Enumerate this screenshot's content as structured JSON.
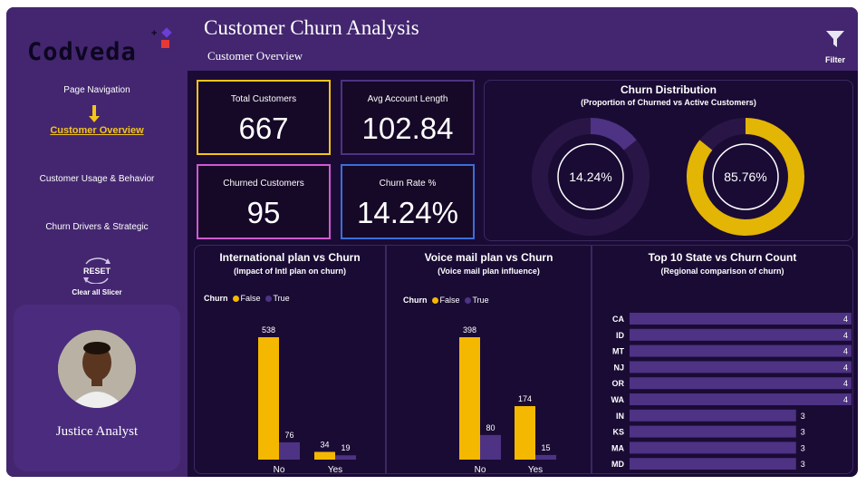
{
  "brand": {
    "name": "Codveda"
  },
  "header": {
    "title": "Customer Churn Analysis",
    "subtitle": "Customer Overview",
    "filter_label": "Filter"
  },
  "nav": {
    "title": "Page Navigation",
    "items": [
      {
        "label": "Customer Overview",
        "active": true
      },
      {
        "label": "Customer Usage & Behavior",
        "active": false
      },
      {
        "label": "Churn Drivers & Strategic",
        "active": false
      }
    ],
    "reset_button": "RESET",
    "reset_label": "Clear all Slicer"
  },
  "profile": {
    "name": "Justice Analyst"
  },
  "kpis": {
    "total_customers": {
      "label": "Total Customers",
      "value": "667"
    },
    "avg_account_length": {
      "label": "Avg Account Length",
      "value": "102.84"
    },
    "churned_customers": {
      "label": "Churned Customers",
      "value": "95"
    },
    "churn_rate": {
      "label": "Churn Rate %",
      "value": "14.24%"
    }
  },
  "colors": {
    "gold": "#f5b800",
    "purple": "#4e3283",
    "accent_yellow": "#f5c518"
  },
  "chart_data": [
    {
      "type": "pie",
      "id": "churn_distribution",
      "title": "Churn Distribution",
      "subtitle": "(Proportion of Churned vs Active Customers)",
      "donuts": [
        {
          "label": "14.24%",
          "value": 14.24,
          "color": "#4e3283"
        },
        {
          "label": "85.76%",
          "value": 85.76,
          "color": "#e3b505"
        }
      ]
    },
    {
      "type": "bar",
      "id": "intl_plan",
      "title": "International plan vs Churn",
      "subtitle": "(Impact of Intl plan on churn)",
      "legend_title": "Churn",
      "categories": [
        "No",
        "Yes"
      ],
      "ylim": [
        0,
        538
      ],
      "series": [
        {
          "name": "False",
          "values": [
            538,
            34
          ],
          "color": "#f5b800"
        },
        {
          "name": "True",
          "values": [
            76,
            19
          ],
          "color": "#4e3283"
        }
      ]
    },
    {
      "type": "bar",
      "id": "voice_mail_plan",
      "title": "Voice mail plan vs Churn",
      "subtitle": "(Voice mail plan influence)",
      "legend_title": "Churn",
      "categories": [
        "No",
        "Yes"
      ],
      "ylim": [
        0,
        398
      ],
      "series": [
        {
          "name": "False",
          "values": [
            398,
            174
          ],
          "color": "#f5b800"
        },
        {
          "name": "True",
          "values": [
            80,
            15
          ],
          "color": "#4e3283"
        }
      ]
    },
    {
      "type": "bar",
      "id": "top_states",
      "orientation": "horizontal",
      "title": "Top 10 State vs Churn Count",
      "subtitle": "(Regional comparison of churn)",
      "categories": [
        "CA",
        "ID",
        "MT",
        "NJ",
        "OR",
        "WA",
        "IN",
        "KS",
        "MA",
        "MD"
      ],
      "values": [
        4,
        4,
        4,
        4,
        4,
        4,
        3,
        3,
        3,
        3
      ],
      "xlim": [
        0,
        4
      ],
      "color": "#4e3283"
    }
  ]
}
